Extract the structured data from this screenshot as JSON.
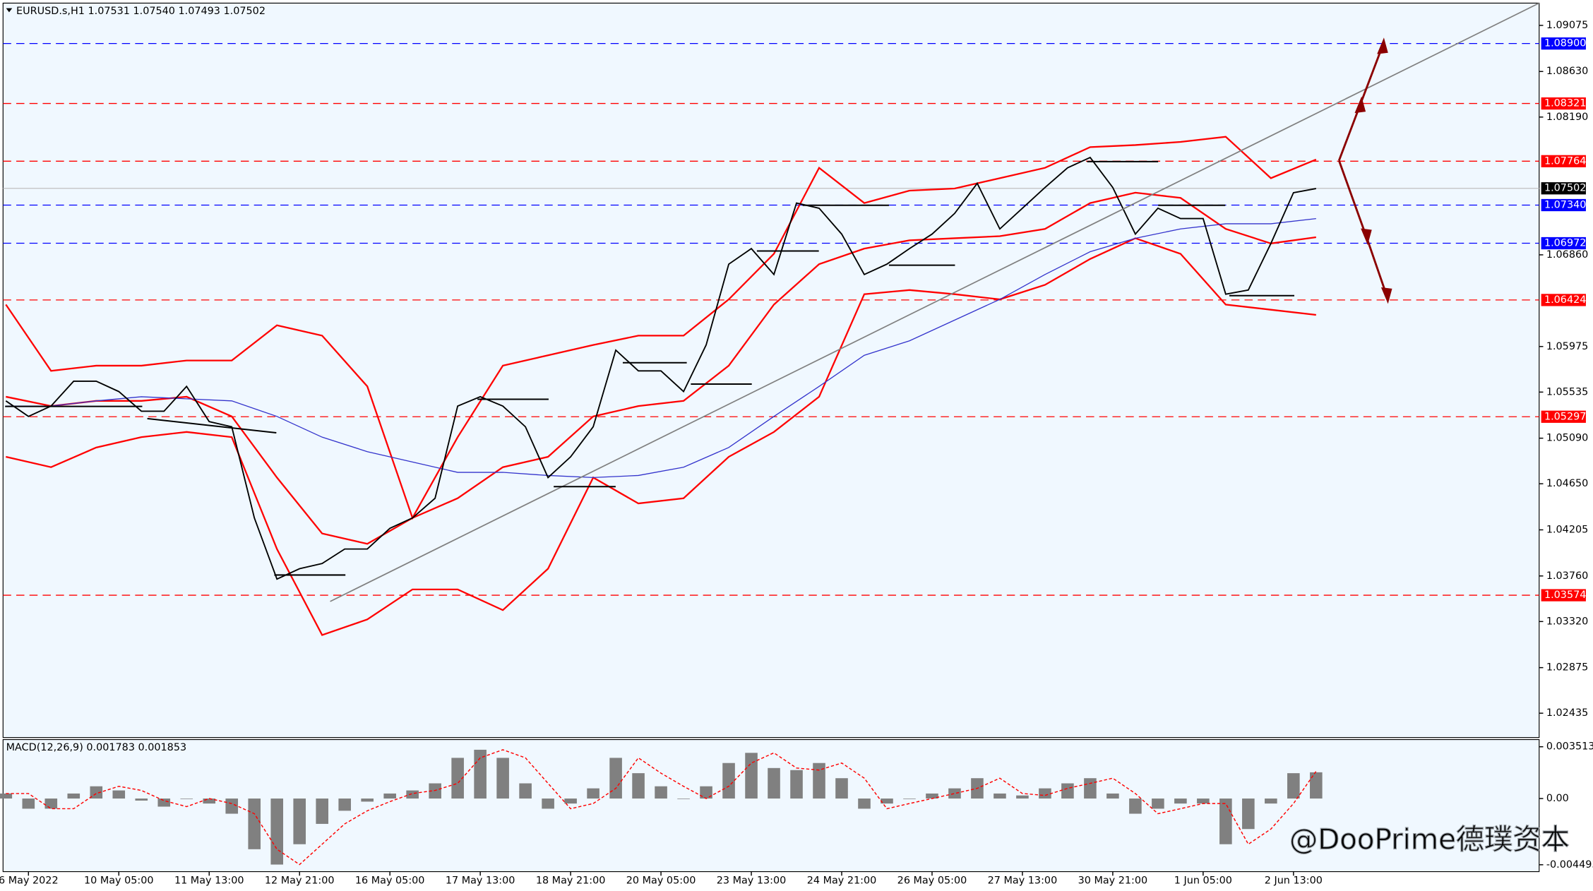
{
  "chart_data": [
    {
      "type": "line",
      "title": "EURUSD.s,H1  1.07531 1.07540 1.07493 1.07502",
      "x": [
        -8,
        0,
        8,
        16,
        24,
        32,
        40,
        48,
        56,
        64,
        72,
        80,
        88,
        96,
        104,
        112,
        120,
        128,
        136,
        144,
        152,
        160,
        168,
        176,
        184,
        192,
        200,
        208,
        216,
        224,
        232,
        240,
        248,
        256,
        264,
        272,
        280,
        288,
        296,
        304,
        312,
        320,
        328,
        336,
        344,
        352,
        360,
        368,
        376,
        384,
        392,
        400,
        408,
        416,
        424,
        432,
        440,
        448,
        456
      ],
      "xlim": [
        -9,
        535
      ],
      "xticks": [
        {
          "value": 0,
          "label": "6 May 2022"
        },
        {
          "value": 32,
          "label": "10 May 05:00"
        },
        {
          "value": 64,
          "label": "11 May 13:00"
        },
        {
          "value": 96,
          "label": "12 May 21:00"
        },
        {
          "value": 128,
          "label": "16 May 05:00"
        },
        {
          "value": 160,
          "label": "17 May 13:00"
        },
        {
          "value": 192,
          "label": "18 May 21:00"
        },
        {
          "value": 224,
          "label": "20 May 05:00"
        },
        {
          "value": 256,
          "label": "23 May 13:00"
        },
        {
          "value": 288,
          "label": "24 May 21:00"
        },
        {
          "value": 320,
          "label": "26 May 05:00"
        },
        {
          "value": 352,
          "label": "27 May 13:00"
        },
        {
          "value": 384,
          "label": "30 May 21:00"
        },
        {
          "value": 416,
          "label": "1 Jun 05:00"
        },
        {
          "value": 448,
          "label": "2 Jun 13:00"
        }
      ],
      "ylim": [
        1.022,
        1.0929
      ],
      "yticks": [
        1.09075,
        {
          "value": 1.0863,
          "label": "1.08630"
        },
        {
          "value": 1.0819,
          "label": "1.08190"
        },
        {
          "value": 1.0686,
          "label": "1.06860"
        },
        1.05975,
        1.05535,
        {
          "value": 1.0509,
          "label": "1.05090"
        },
        {
          "value": 1.0465,
          "label": "1.04650"
        },
        1.04205,
        {
          "value": 1.0376,
          "label": "1.03760"
        },
        {
          "value": 1.0332,
          "label": "1.03320"
        },
        1.02875,
        1.02435
      ],
      "series": [
        {
          "color": "#000000",
          "values": [
            1.0545,
            1.053,
            1.054,
            1.0564,
            1.0564,
            1.0554,
            1.0535,
            1.0535,
            1.0559,
            1.0525,
            1.052,
            1.0432,
            1.0373,
            1.0383,
            1.0388,
            1.0402,
            1.0402,
            1.0422,
            1.0432,
            1.0451,
            1.054,
            1.0549,
            1.054,
            1.052,
            1.0471,
            1.0491,
            1.052,
            1.0594,
            1.0574,
            1.0574,
            1.0554,
            1.0599,
            1.0677,
            1.0692,
            1.0667,
            1.0736,
            1.0731,
            1.0706,
            1.0667,
            1.0677,
            1.0692,
            1.0706,
            1.0726,
            1.0755,
            1.0711,
            1.0731,
            1.0751,
            1.077,
            1.078,
            1.0751,
            1.0706,
            1.0731,
            1.0721,
            1.0721,
            1.0648,
            1.0652,
            1.0697,
            1.0746,
            1.075
          ]
        }
      ],
      "indicator_x": [
        -8,
        8,
        24,
        40,
        56,
        72,
        88,
        104,
        120,
        136,
        152,
        168,
        184,
        200,
        216,
        232,
        248,
        264,
        280,
        296,
        312,
        328,
        344,
        360,
        376,
        392,
        408,
        424,
        440,
        456
      ],
      "indicators": [
        {
          "color": "#ff0000",
          "values": [
            1.0638,
            1.0574,
            1.0579,
            1.0579,
            1.0584,
            1.0584,
            1.0618,
            1.0608,
            1.0559,
            1.0432,
            1.051,
            1.0579,
            1.0589,
            1.0599,
            1.0608,
            1.0608,
            1.0643,
            1.0687,
            1.077,
            1.0736,
            1.0748,
            1.075,
            1.076,
            1.077,
            1.079,
            1.0792,
            1.0795,
            1.08,
            1.076,
            1.0778
          ]
        },
        {
          "color": "#ff0000",
          "values": [
            1.0491,
            1.0481,
            1.05,
            1.051,
            1.0515,
            1.051,
            1.0402,
            1.0319,
            1.0334,
            1.0363,
            1.0363,
            1.0343,
            1.0383,
            1.0471,
            1.0446,
            1.0451,
            1.0491,
            1.0515,
            1.0549,
            1.0648,
            1.0652,
            1.0648,
            1.0643,
            1.0657,
            1.0682,
            1.0702,
            1.0687,
            1.0638,
            1.0633,
            1.0628
          ]
        },
        {
          "color": "#ff0000",
          "values": [
            1.0549,
            1.054,
            1.0545,
            1.0545,
            1.0549,
            1.053,
            1.0471,
            1.0417,
            1.0407,
            1.0432,
            1.0451,
            1.0481,
            1.0491,
            1.053,
            1.054,
            1.0545,
            1.0579,
            1.0638,
            1.0677,
            1.0692,
            1.07,
            1.0702,
            1.0704,
            1.0711,
            1.0736,
            1.0746,
            1.0741,
            1.0711,
            1.0697,
            1.0703
          ]
        },
        {
          "color": "#3333cc",
          "values": [
            1.054,
            1.054,
            1.0545,
            1.0549,
            1.0547,
            1.0545,
            1.053,
            1.051,
            1.0496,
            1.0486,
            1.0476,
            1.0476,
            1.0473,
            1.0471,
            1.0473,
            1.0481,
            1.05,
            1.053,
            1.0559,
            1.0589,
            1.0603,
            1.0623,
            1.0643,
            1.0667,
            1.0689,
            1.0702,
            1.0711,
            1.0716,
            1.0716,
            1.0721
          ]
        }
      ],
      "levels": [
        {
          "value": 1.089,
          "label": "1.08900",
          "color": "#0000ff"
        },
        {
          "value": 1.08321,
          "label": "1.08321",
          "color": "#ff0000"
        },
        {
          "value": 1.07764,
          "label": "1.07764",
          "color": "#ff0000"
        },
        {
          "value": 1.0734,
          "label": "1.07340",
          "color": "#0000ff"
        },
        {
          "value": 1.06972,
          "label": "1.06972",
          "color": "#0000ff"
        },
        {
          "value": 1.06424,
          "label": "1.06424",
          "color": "#ff0000"
        },
        {
          "value": 1.05297,
          "label": "1.05297",
          "color": "#ff0000"
        },
        {
          "value": 1.03574,
          "label": "1.03574",
          "color": "#ff0000"
        }
      ],
      "current": {
        "value": 1.07502,
        "label": "1.07502",
        "color": "#000000"
      }
    },
    {
      "type": "bar",
      "title": "MACD(12,26,9) 0.001783 0.001853",
      "x": [
        -8,
        0,
        8,
        16,
        24,
        32,
        40,
        48,
        56,
        64,
        72,
        80,
        88,
        96,
        104,
        112,
        120,
        128,
        136,
        144,
        152,
        160,
        168,
        176,
        184,
        192,
        200,
        208,
        216,
        224,
        232,
        240,
        248,
        256,
        264,
        272,
        280,
        288,
        296,
        304,
        312,
        320,
        328,
        336,
        344,
        352,
        360,
        368,
        376,
        384,
        392,
        400,
        408,
        416,
        424,
        432,
        440,
        448,
        456
      ],
      "ylim": [
        -0.00496,
        0.004
      ],
      "yticks": [
        0.003513,
        {
          "value": 0,
          "label": "0.00"
        },
        -0.004493
      ],
      "series": [
        {
          "color": "#808080",
          "values": [
            0.00034,
            -0.00069,
            -0.00069,
            0.00034,
            0.00083,
            0.00055,
            -0.00014,
            -0.00055,
            0,
            -0.00034,
            -0.00103,
            -0.00344,
            -0.00448,
            -0.0031,
            -0.00172,
            -0.00083,
            -0.00021,
            0.00034,
            0.00055,
            0.00103,
            0.00276,
            0.00331,
            0.00276,
            0.00103,
            -0.00069,
            -0.00034,
            0.00069,
            0.00276,
            0.00172,
            0.00083,
            0,
            0.00083,
            0.00241,
            0.0031,
            0.00207,
            0.00193,
            0.00241,
            0.00138,
            -0.00069,
            -0.00034,
            0,
            0.00034,
            0.00069,
            0.00138,
            0.00034,
            0.00021,
            0.00069,
            0.00103,
            0.00138,
            0.00034,
            -0.00103,
            -0.00069,
            -0.00034,
            -0.00034,
            -0.0031,
            -0.00207,
            -0.00034,
            0.00172,
            0.00178
          ]
        },
        {
          "color": "#ff0000",
          "values": [
            0.00034,
            0.00034,
            -0.00069,
            -0.00069,
            0.00034,
            0.00083,
            0.00055,
            -0.00014,
            -0.00055,
            0,
            -0.00034,
            -0.00103,
            -0.00344,
            -0.00448,
            -0.0031,
            -0.00172,
            -0.00083,
            -0.00021,
            0.00034,
            0.00055,
            0.00103,
            0.00276,
            0.00331,
            0.00276,
            0.00103,
            -0.00069,
            -0.00034,
            0.00069,
            0.00276,
            0.00172,
            0.00083,
            0,
            0.00083,
            0.00241,
            0.0031,
            0.00207,
            0.00193,
            0.00241,
            0.00138,
            -0.00069,
            -0.00034,
            0,
            0.00034,
            0.00069,
            0.00138,
            0.00034,
            0.00021,
            0.00069,
            0.00103,
            0.00138,
            0.00034,
            -0.00103,
            -0.00069,
            -0.00034,
            -0.00034,
            -0.0031,
            -0.00207,
            -0.00034,
            0.00185
          ]
        }
      ]
    }
  ],
  "watermark": "@DooPrime德璞资本"
}
